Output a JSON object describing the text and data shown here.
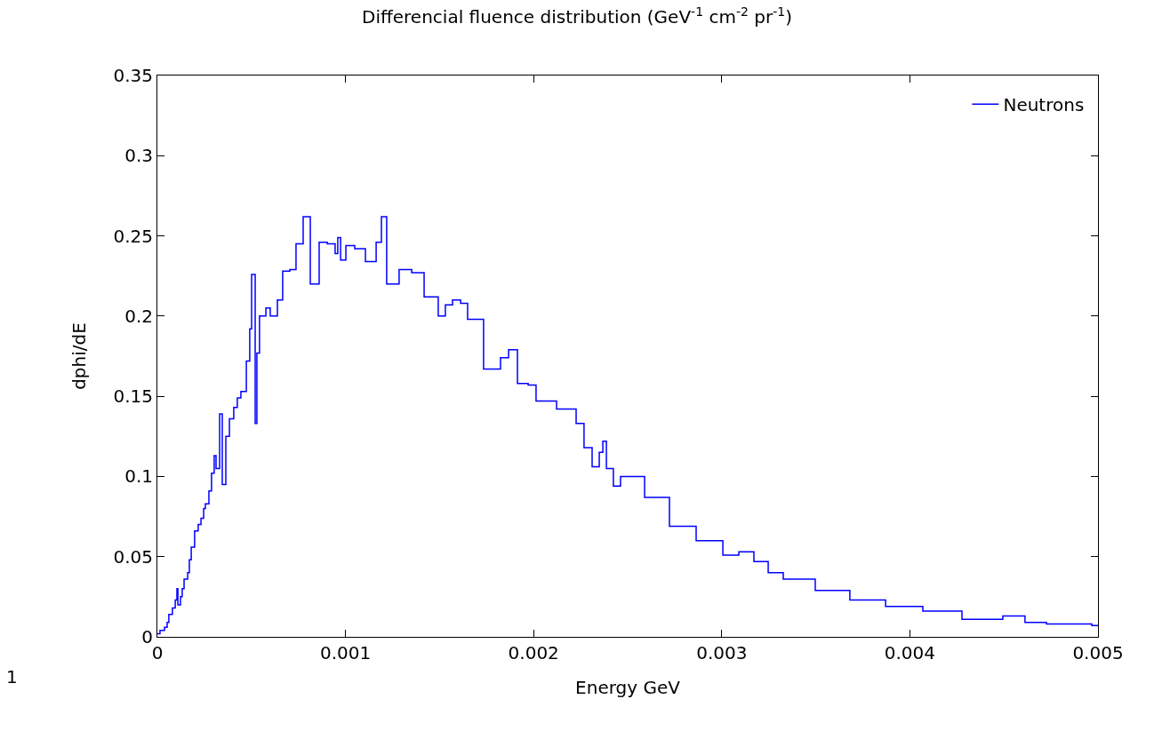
{
  "chart_data": {
    "type": "step",
    "title": "Differencial fluence distribution (GeV$^{-1}$ cm$^{-2}$ pr$^{-1}$)",
    "xlabel": "Energy GeV",
    "ylabel": "dphi/dE",
    "xlim": [
      0,
      0.005
    ],
    "xticks": [
      0,
      0.001,
      0.002,
      0.003,
      0.004,
      0.005
    ],
    "ylim": [
      0,
      0.35
    ],
    "yticks": [
      0,
      0.05,
      0.1,
      0.15,
      0.2,
      0.25,
      0.3,
      0.35
    ],
    "legend": "top right",
    "marker": "none",
    "line_style": "solid",
    "annotations": [
      "1"
    ],
    "series": [
      {
        "name": "Neutrons",
        "color": "#0000ff",
        "x": [
          0,
          1.4e-05,
          3.8e-05,
          5.2e-05,
          6.1e-05,
          8e-05,
          9.5e-05,
          0.000104,
          0.000109,
          0.000123,
          0.000132,
          0.000142,
          0.000161,
          0.00017,
          0.00018,
          0.000198,
          0.000217,
          0.000232,
          0.000246,
          0.000255,
          0.000274,
          0.000288,
          0.000302,
          0.000312,
          0.000331,
          0.000345,
          0.000364,
          0.000383,
          0.000406,
          0.000425,
          0.000444,
          0.000473,
          0.000491,
          0.000501,
          0.00052,
          0.000529,
          0.000543,
          0.000577,
          0.0006,
          0.000638,
          0.000666,
          0.000704,
          0.000737,
          0.000775,
          0.000813,
          0.00086,
          0.000903,
          0.000945,
          0.000959,
          0.000974,
          0.001002,
          0.001049,
          0.001106,
          0.001163,
          0.001191,
          0.001219,
          0.001285,
          0.001352,
          0.001418,
          0.001493,
          0.001531,
          0.001569,
          0.001612,
          0.001649,
          0.001734,
          0.001824,
          0.001867,
          0.001914,
          0.001971,
          0.002013,
          0.002122,
          0.002226,
          0.002268,
          0.002311,
          0.002349,
          0.002368,
          0.002387,
          0.002424,
          0.002462,
          0.00259,
          0.002722,
          0.002864,
          0.003006,
          0.003091,
          0.003171,
          0.003247,
          0.003327,
          0.003497,
          0.003681,
          0.003871,
          0.004069,
          0.004277,
          0.004494,
          0.004612,
          0.004726,
          0.004967,
          0.005
        ],
        "values": [
          0.002,
          0.004,
          0.006,
          0.009,
          0.014,
          0.018,
          0.023,
          0.03,
          0.02,
          0.025,
          0.03,
          0.036,
          0.04,
          0.048,
          0.056,
          0.066,
          0.07,
          0.074,
          0.08,
          0.083,
          0.091,
          0.102,
          0.113,
          0.105,
          0.139,
          0.095,
          0.125,
          0.136,
          0.143,
          0.149,
          0.153,
          0.172,
          0.192,
          0.226,
          0.133,
          0.177,
          0.2,
          0.205,
          0.2,
          0.21,
          0.228,
          0.229,
          0.245,
          0.262,
          0.22,
          0.246,
          0.245,
          0.239,
          0.249,
          0.235,
          0.244,
          0.242,
          0.234,
          0.246,
          0.262,
          0.22,
          0.229,
          0.227,
          0.212,
          0.2,
          0.207,
          0.21,
          0.208,
          0.198,
          0.167,
          0.174,
          0.179,
          0.158,
          0.157,
          0.147,
          0.142,
          0.133,
          0.118,
          0.106,
          0.115,
          0.122,
          0.105,
          0.094,
          0.1,
          0.087,
          0.069,
          0.06,
          0.051,
          0.053,
          0.047,
          0.04,
          0.036,
          0.029,
          0.023,
          0.019,
          0.016,
          0.011,
          0.013,
          0.009,
          0.008,
          0.007,
          0.007
        ]
      }
    ]
  }
}
